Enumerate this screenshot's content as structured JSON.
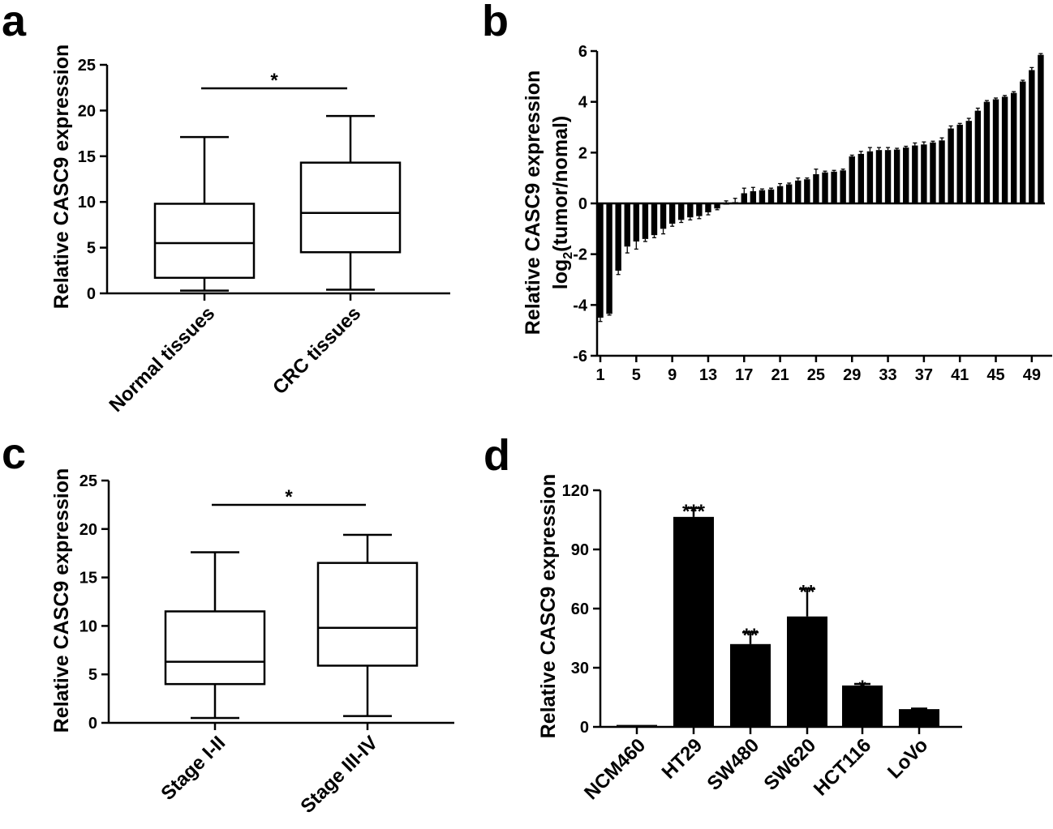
{
  "panel_labels": [
    "a",
    "b",
    "c",
    "d"
  ],
  "chart_data": [
    {
      "id": "a",
      "type": "box",
      "ylabel": "Relative CASC9 expression",
      "ylim": [
        0,
        25
      ],
      "yticks": [
        "0",
        "5",
        "10",
        "15",
        "20",
        "25"
      ],
      "categories": [
        "Normal tissues",
        "CRC tissues"
      ],
      "boxes": [
        {
          "min": 0.3,
          "q1": 1.7,
          "median": 5.5,
          "q3": 9.8,
          "max": 17.1
        },
        {
          "min": 0.4,
          "q1": 4.5,
          "median": 8.8,
          "q3": 14.3,
          "max": 19.4
        }
      ],
      "significance": "*"
    },
    {
      "id": "b",
      "type": "bar",
      "ylabel": "Relative CASC9 expression",
      "ylabel2": "log2(tumor/nomal)",
      "ylim": [
        -6,
        6
      ],
      "yticks": [
        "6",
        "4",
        "2",
        "0",
        "-2",
        "-4",
        "-6"
      ],
      "xticks": [
        "1",
        "5",
        "9",
        "13",
        "17",
        "21",
        "25",
        "29",
        "33",
        "37",
        "41",
        "45",
        "49"
      ],
      "values": [
        -4.5,
        -4.35,
        -2.65,
        -1.7,
        -1.5,
        -1.4,
        -1.25,
        -1.0,
        -0.8,
        -0.65,
        -0.55,
        -0.5,
        -0.35,
        -0.2,
        0.0,
        0.05,
        0.4,
        0.48,
        0.52,
        0.55,
        0.68,
        0.75,
        0.9,
        0.95,
        1.15,
        1.22,
        1.25,
        1.3,
        1.85,
        1.95,
        2.05,
        2.1,
        2.1,
        2.12,
        2.2,
        2.28,
        2.32,
        2.4,
        2.48,
        2.95,
        3.1,
        3.25,
        3.65,
        4.0,
        4.1,
        4.2,
        4.35,
        4.8,
        5.25,
        5.85
      ],
      "errors": [
        0.15,
        0.05,
        0.15,
        0.25,
        0.3,
        0.1,
        0.1,
        0.2,
        0.1,
        0.1,
        0.1,
        0.1,
        0.1,
        0.05,
        0.1,
        0.15,
        0.2,
        0.15,
        0.05,
        0.05,
        0.1,
        0.05,
        0.1,
        0.05,
        0.2,
        0.05,
        0.05,
        0.05,
        0.05,
        0.1,
        0.15,
        0.1,
        0.1,
        0.05,
        0.05,
        0.1,
        0.1,
        0.05,
        0.1,
        0.1,
        0.05,
        0.1,
        0.1,
        0.05,
        0.05,
        0.05,
        0.05,
        0.05,
        0.1,
        0.05
      ]
    },
    {
      "id": "c",
      "type": "box",
      "ylabel": "Relative CASC9 expression",
      "ylim": [
        0,
        25
      ],
      "yticks": [
        "0",
        "5",
        "10",
        "15",
        "20",
        "25"
      ],
      "categories": [
        "Stage I-II",
        "Stage III-IV"
      ],
      "boxes": [
        {
          "min": 0.5,
          "q1": 4.0,
          "median": 6.3,
          "q3": 11.5,
          "max": 17.6
        },
        {
          "min": 0.7,
          "q1": 5.9,
          "median": 9.8,
          "q3": 16.5,
          "max": 19.4
        }
      ],
      "significance": "*"
    },
    {
      "id": "d",
      "type": "bar",
      "ylabel": "Relative CASC9 expression",
      "ylim": [
        0,
        120
      ],
      "yticks": [
        "0",
        "30",
        "60",
        "90",
        "120"
      ],
      "categories": [
        "NCM460",
        "HT29",
        "SW480",
        "SW620",
        "HCT116",
        "LoVo"
      ],
      "values": [
        1,
        106.5,
        42,
        56,
        21,
        9
      ],
      "errors": [
        0,
        4.5,
        6,
        14,
        0.8,
        0.3
      ],
      "significance": [
        "",
        "***",
        "**",
        "**",
        "*",
        ""
      ]
    }
  ]
}
